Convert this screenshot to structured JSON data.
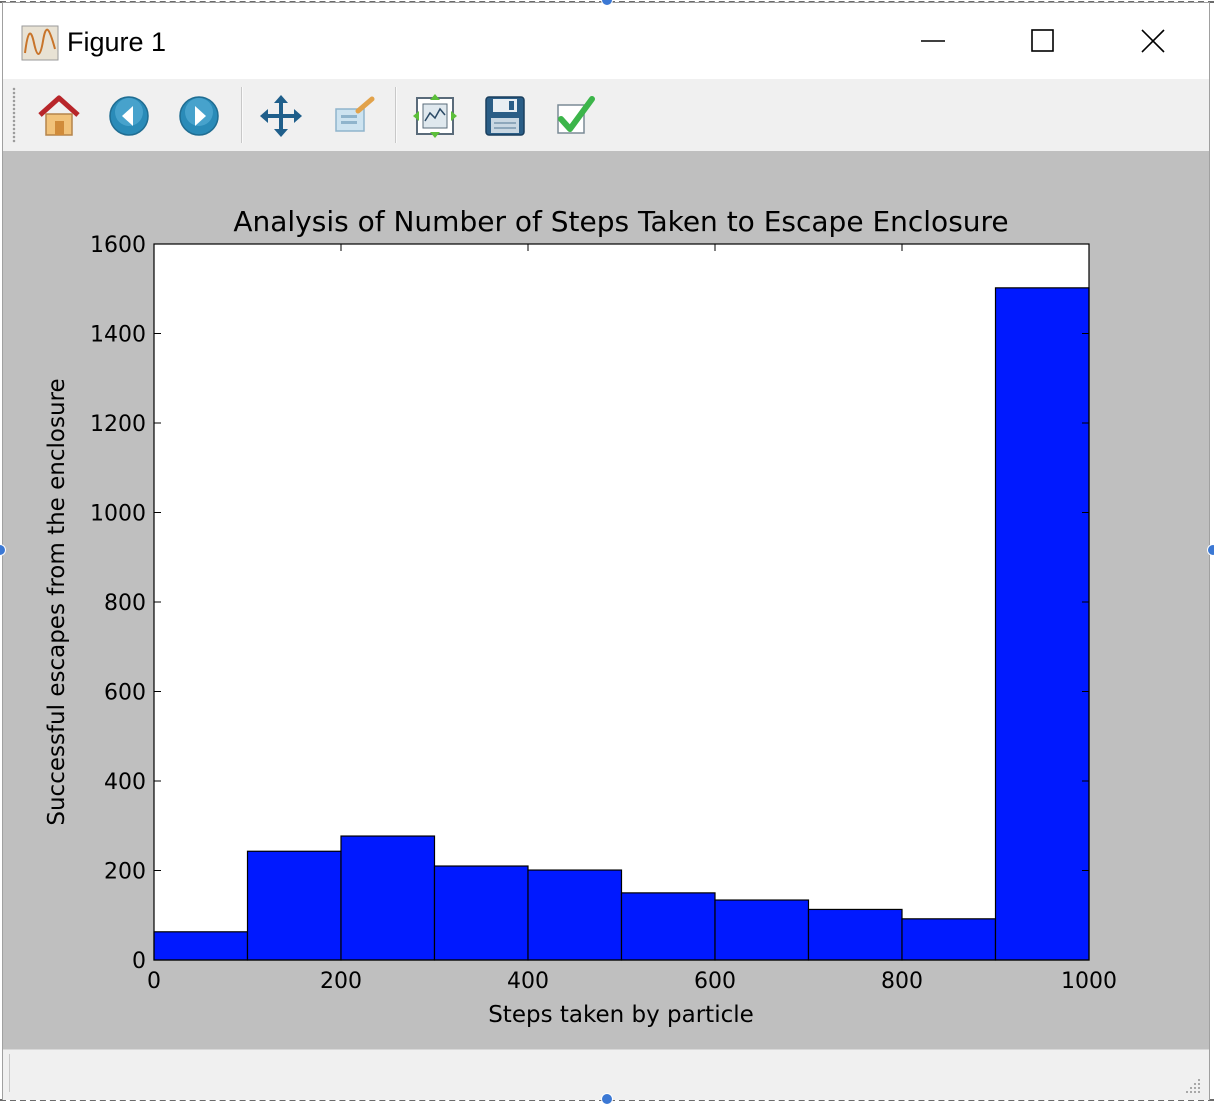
{
  "window": {
    "title": "Figure 1"
  },
  "toolbar": {
    "tools": [
      {
        "name": "home-icon"
      },
      {
        "name": "back-icon"
      },
      {
        "name": "forward-icon"
      },
      {
        "name": "pan-icon"
      },
      {
        "name": "zoom-icon"
      },
      {
        "name": "subplots-icon"
      },
      {
        "name": "save-icon"
      },
      {
        "name": "edit-check-icon"
      }
    ]
  },
  "chart_data": {
    "type": "bar",
    "title": "Analysis of Number of Steps Taken to Escape Enclosure",
    "xlabel": "Steps taken by particle",
    "ylabel": "Successful escapes from the enclosure",
    "xlim": [
      0,
      1000
    ],
    "ylim": [
      0,
      1600
    ],
    "xticks": [
      0,
      200,
      400,
      600,
      800,
      1000
    ],
    "yticks": [
      0,
      200,
      400,
      600,
      800,
      1000,
      1200,
      1400,
      1600
    ],
    "bin_edges": [
      0,
      100,
      200,
      300,
      400,
      500,
      600,
      700,
      800,
      900,
      1000
    ],
    "values": [
      63,
      243,
      277,
      210,
      201,
      150,
      134,
      113,
      92,
      1502
    ],
    "bar_color": "#0019ff",
    "grid": false
  }
}
